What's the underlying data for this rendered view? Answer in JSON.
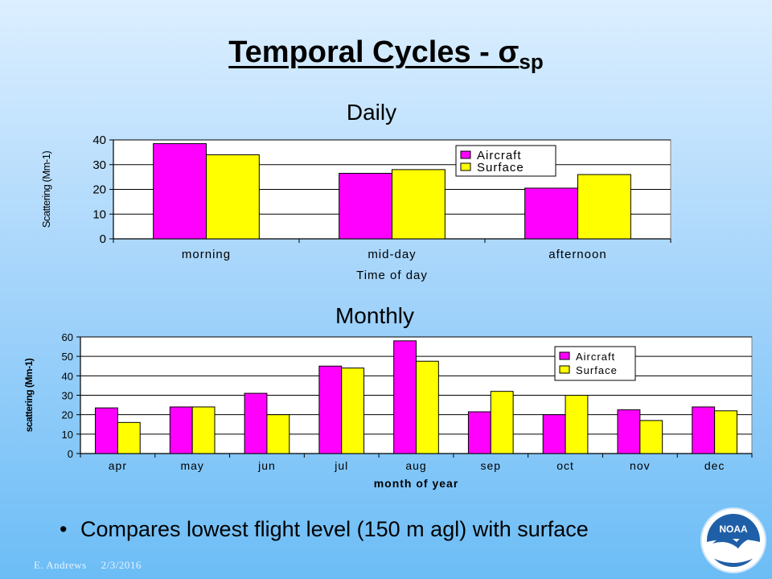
{
  "slide": {
    "title_main": "Temporal Cycles - ",
    "title_sigma": "σ",
    "title_sub": "sp",
    "bullet": "Compares lowest flight level (150 m agl) with surface",
    "footer_author": "E. Andrews",
    "footer_date": "2/3/2016",
    "logo_text": "NOAA"
  },
  "colors": {
    "aircraft": "#ff00ff",
    "surface": "#ffff00",
    "plot_bg": "#ffffff",
    "grid": "#000000"
  },
  "chart_data": [
    {
      "type": "bar",
      "heading": "Daily",
      "categories": [
        "morning",
        "mid-day",
        "afternoon"
      ],
      "series": [
        {
          "name": "Aircraft",
          "values": [
            38.5,
            26.5,
            20.5
          ]
        },
        {
          "name": "Surface",
          "values": [
            34,
            28,
            26
          ]
        }
      ],
      "xlabel": "Time of day",
      "ylabel": "Scattering (Mm-1)",
      "ylim": [
        0,
        40
      ],
      "yticks": [
        "0",
        "10",
        "20",
        "30",
        "40"
      ],
      "grid": true,
      "legend_position": "top-right"
    },
    {
      "type": "bar",
      "heading": "Monthly",
      "categories": [
        "apr",
        "may",
        "jun",
        "jul",
        "aug",
        "sep",
        "oct",
        "nov",
        "dec"
      ],
      "series": [
        {
          "name": "Aircraft",
          "values": [
            23.5,
            24,
            31,
            45,
            58,
            21.5,
            20,
            22.5,
            24
          ]
        },
        {
          "name": "Surface",
          "values": [
            16,
            24,
            20,
            44,
            47.5,
            32,
            30,
            17,
            22
          ]
        }
      ],
      "xlabel": "month of year",
      "ylabel": "scattering (Mm-1)",
      "ylim": [
        0,
        60
      ],
      "yticks": [
        "0",
        "10",
        "20",
        "30",
        "40",
        "50",
        "60"
      ],
      "grid": true,
      "legend_position": "top-right"
    }
  ]
}
